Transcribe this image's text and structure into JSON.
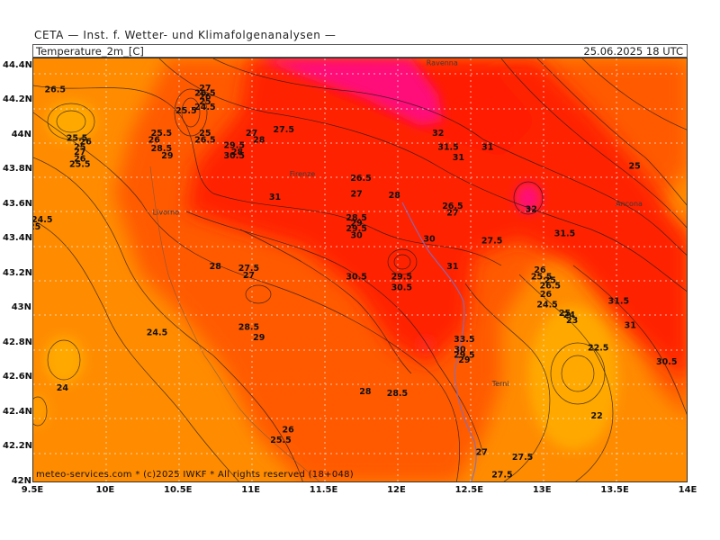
{
  "header": {
    "org_line": "CETA — Inst. f. Wetter- und Klimafolgenanalysen —",
    "variable": "Temperature_2m_[C]",
    "valid_time": "25.06.2025 18 UTC"
  },
  "footer": {
    "copyright": "meteo-services.com * (c)2025 IWKF * All rights reserved (18+048)"
  },
  "map": {
    "lon_range": [
      9.5,
      14.0
    ],
    "lat_range": [
      42.0,
      44.45
    ],
    "lat_ticks": [
      "44.4N",
      "44.2N",
      "44N",
      "43.8N",
      "43.6N",
      "43.4N",
      "43.2N",
      "43N",
      "42.8N",
      "42.6N",
      "42.4N",
      "42.2N",
      "42N"
    ],
    "lon_ticks": [
      "9.5E",
      "10E",
      "10.5E",
      "11E",
      "11.5E",
      "12E",
      "12.5E",
      "13E",
      "13.5E",
      "14E"
    ],
    "colors": {
      "below_22": "#ffa800",
      "22_26": "#ff8c00",
      "26_30": "#ff5a00",
      "30_33": "#ff1e00",
      "above_33": "#ff0c78",
      "contours": "#1a1a1a",
      "grid": "#e8e8e8",
      "river": "#7a70c8"
    },
    "cities": [
      {
        "name": "Ravenna",
        "lon": 12.2,
        "lat": 44.41
      },
      {
        "name": "Firenze",
        "lon": 11.26,
        "lat": 43.77
      },
      {
        "name": "Livorno",
        "lon": 10.32,
        "lat": 43.55
      },
      {
        "name": "Ancona",
        "lon": 13.5,
        "lat": 43.6
      },
      {
        "name": "Terni",
        "lon": 12.65,
        "lat": 42.56
      }
    ],
    "contour_labels": [
      {
        "t": "26.5",
        "lon": 9.65,
        "lat": 44.27
      },
      {
        "t": "25.5",
        "lon": 9.8,
        "lat": 43.99
      },
      {
        "t": "26",
        "lon": 9.86,
        "lat": 43.97
      },
      {
        "t": "25",
        "lon": 9.82,
        "lat": 43.94
      },
      {
        "t": "27",
        "lon": 9.82,
        "lat": 43.91
      },
      {
        "t": "26",
        "lon": 9.82,
        "lat": 43.87
      },
      {
        "t": "25.5",
        "lon": 9.82,
        "lat": 43.84
      },
      {
        "t": "24.5",
        "lon": 9.56,
        "lat": 43.52
      },
      {
        "t": "25",
        "lon": 9.51,
        "lat": 43.48
      },
      {
        "t": "24.5",
        "lon": 10.35,
        "lat": 42.87
      },
      {
        "t": "24",
        "lon": 9.7,
        "lat": 42.55
      },
      {
        "t": "27",
        "lon": 10.68,
        "lat": 44.28
      },
      {
        "t": "26.5",
        "lon": 10.68,
        "lat": 44.25
      },
      {
        "t": "26",
        "lon": 10.68,
        "lat": 44.23
      },
      {
        "t": "25",
        "lon": 10.68,
        "lat": 44.2
      },
      {
        "t": "24.5",
        "lon": 10.68,
        "lat": 44.17
      },
      {
        "t": "25.5",
        "lon": 10.55,
        "lat": 44.15
      },
      {
        "t": "25.5",
        "lon": 10.38,
        "lat": 44.02
      },
      {
        "t": "26",
        "lon": 10.33,
        "lat": 43.98
      },
      {
        "t": "25",
        "lon": 10.68,
        "lat": 44.02
      },
      {
        "t": "26.5",
        "lon": 10.68,
        "lat": 43.98
      },
      {
        "t": "28.5",
        "lon": 10.38,
        "lat": 43.93
      },
      {
        "t": "29",
        "lon": 10.42,
        "lat": 43.89
      },
      {
        "t": "27",
        "lon": 11.0,
        "lat": 44.02
      },
      {
        "t": "28",
        "lon": 11.05,
        "lat": 43.98
      },
      {
        "t": "29.5",
        "lon": 10.88,
        "lat": 43.95
      },
      {
        "t": "28",
        "lon": 10.9,
        "lat": 43.91
      },
      {
        "t": "30.5",
        "lon": 10.88,
        "lat": 43.89
      },
      {
        "t": "27.5",
        "lon": 11.22,
        "lat": 44.04
      },
      {
        "t": "31",
        "lon": 11.16,
        "lat": 43.65
      },
      {
        "t": "26.5",
        "lon": 11.75,
        "lat": 43.76
      },
      {
        "t": "27",
        "lon": 11.72,
        "lat": 43.67
      },
      {
        "t": "28",
        "lon": 11.98,
        "lat": 43.66
      },
      {
        "t": "28.5",
        "lon": 11.72,
        "lat": 43.53
      },
      {
        "t": "29",
        "lon": 11.72,
        "lat": 43.5
      },
      {
        "t": "29.5",
        "lon": 11.72,
        "lat": 43.47
      },
      {
        "t": "30",
        "lon": 11.72,
        "lat": 43.43
      },
      {
        "t": "28",
        "lon": 10.75,
        "lat": 43.25
      },
      {
        "t": "27.5",
        "lon": 10.98,
        "lat": 43.24
      },
      {
        "t": "27",
        "lon": 10.98,
        "lat": 43.2
      },
      {
        "t": "28.5",
        "lon": 10.98,
        "lat": 42.9
      },
      {
        "t": "29",
        "lon": 11.05,
        "lat": 42.84
      },
      {
        "t": "30.5",
        "lon": 11.72,
        "lat": 43.19
      },
      {
        "t": "29.5",
        "lon": 12.03,
        "lat": 43.19
      },
      {
        "t": "30.5",
        "lon": 12.03,
        "lat": 43.13
      },
      {
        "t": "30",
        "lon": 12.22,
        "lat": 43.41
      },
      {
        "t": "31",
        "lon": 12.38,
        "lat": 43.25
      },
      {
        "t": "28",
        "lon": 11.78,
        "lat": 42.53
      },
      {
        "t": "28.5",
        "lon": 12.0,
        "lat": 42.52
      },
      {
        "t": "26",
        "lon": 11.25,
        "lat": 42.31
      },
      {
        "t": "25.5",
        "lon": 11.2,
        "lat": 42.25
      },
      {
        "t": "26.5",
        "lon": 12.38,
        "lat": 43.6
      },
      {
        "t": "27",
        "lon": 12.38,
        "lat": 43.56
      },
      {
        "t": "27.5",
        "lon": 12.65,
        "lat": 43.4
      },
      {
        "t": "32",
        "lon": 12.28,
        "lat": 44.02
      },
      {
        "t": "31.5",
        "lon": 12.35,
        "lat": 43.94
      },
      {
        "t": "31",
        "lon": 12.42,
        "lat": 43.88
      },
      {
        "t": "31",
        "lon": 12.62,
        "lat": 43.94
      },
      {
        "t": "32",
        "lon": 12.92,
        "lat": 43.58
      },
      {
        "t": "31.5",
        "lon": 13.15,
        "lat": 43.44
      },
      {
        "t": "25",
        "lon": 13.63,
        "lat": 43.83
      },
      {
        "t": "31.5",
        "lon": 13.52,
        "lat": 43.05
      },
      {
        "t": "31",
        "lon": 13.6,
        "lat": 42.91
      },
      {
        "t": "30.5",
        "lon": 13.85,
        "lat": 42.7
      },
      {
        "t": "26",
        "lon": 12.98,
        "lat": 43.23
      },
      {
        "t": "25.5",
        "lon": 12.99,
        "lat": 43.19
      },
      {
        "t": "25",
        "lon": 13.05,
        "lat": 43.17
      },
      {
        "t": "26.5",
        "lon": 13.05,
        "lat": 43.14
      },
      {
        "t": "26",
        "lon": 13.02,
        "lat": 43.09
      },
      {
        "t": "24.5",
        "lon": 13.03,
        "lat": 43.03
      },
      {
        "t": "25",
        "lon": 13.15,
        "lat": 42.98
      },
      {
        "t": "24",
        "lon": 13.18,
        "lat": 42.97
      },
      {
        "t": "23",
        "lon": 13.2,
        "lat": 42.94
      },
      {
        "t": "22.5",
        "lon": 13.38,
        "lat": 42.78
      },
      {
        "t": "22",
        "lon": 13.37,
        "lat": 42.39
      },
      {
        "t": "33.5",
        "lon": 12.46,
        "lat": 42.83
      },
      {
        "t": "30",
        "lon": 12.43,
        "lat": 42.77
      },
      {
        "t": "29.5",
        "lon": 12.46,
        "lat": 42.74
      },
      {
        "t": "29",
        "lon": 12.46,
        "lat": 42.71
      },
      {
        "t": "27",
        "lon": 12.58,
        "lat": 42.18
      },
      {
        "t": "27.5",
        "lon": 12.86,
        "lat": 42.15
      },
      {
        "t": "27.5",
        "lon": 12.72,
        "lat": 42.05
      }
    ]
  }
}
